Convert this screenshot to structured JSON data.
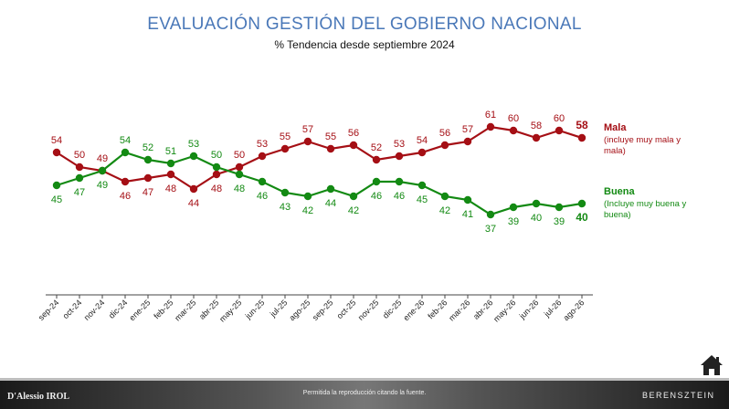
{
  "header": {
    "title": "EVALUACIÓN GESTIÓN DEL GOBIERNO NACIONAL",
    "subtitle": "% Tendencia desde septiembre 2024"
  },
  "legend": {
    "mala_title": "Mala",
    "mala_sub": "(incluye muy mala y mala)",
    "buena_title": "Buena",
    "buena_sub": "(Incluye muy buena y buena)"
  },
  "footer": {
    "note": "Permitida la reproducción citando la fuente.",
    "logo_left": "D'Alessio IROL",
    "logo_right": "BERENSZTEIN"
  },
  "icons": {
    "home": "home-icon"
  },
  "colors": {
    "mala": "#a50f15",
    "buena": "#138a13",
    "title": "#4a78b8"
  },
  "chart_data": {
    "type": "line",
    "title": "EVALUACIÓN GESTIÓN DEL GOBIERNO NACIONAL",
    "subtitle": "% Tendencia desde septiembre 2024",
    "categories": [
      "sep-24",
      "oct-24",
      "nov-24",
      "dic-24",
      "ene-25",
      "feb-25",
      "mar-25",
      "abr-25",
      "may-25",
      "jun-25",
      "jul-25",
      "ago-25",
      "sep-25",
      "oct-25",
      "nov-25",
      "dic-25",
      "ene-26",
      "feb-26",
      "mar-26",
      "abr-26",
      "may-26",
      "jun-26",
      "jul-26",
      "ago-26"
    ],
    "series": [
      {
        "name": "Mala",
        "color": "#a50f15",
        "values": [
          54,
          50,
          49,
          46,
          47,
          48,
          44,
          48,
          50,
          53,
          55,
          57,
          55,
          56,
          52,
          53,
          54,
          56,
          57,
          61,
          60,
          58,
          60,
          58
        ]
      },
      {
        "name": "Buena",
        "color": "#138a13",
        "values": [
          45,
          47,
          49,
          54,
          52,
          51,
          53,
          50,
          48,
          46,
          43,
          42,
          44,
          42,
          46,
          46,
          45,
          42,
          41,
          37,
          39,
          40,
          39,
          40
        ]
      }
    ],
    "grid": false,
    "legend_position": "right"
  }
}
